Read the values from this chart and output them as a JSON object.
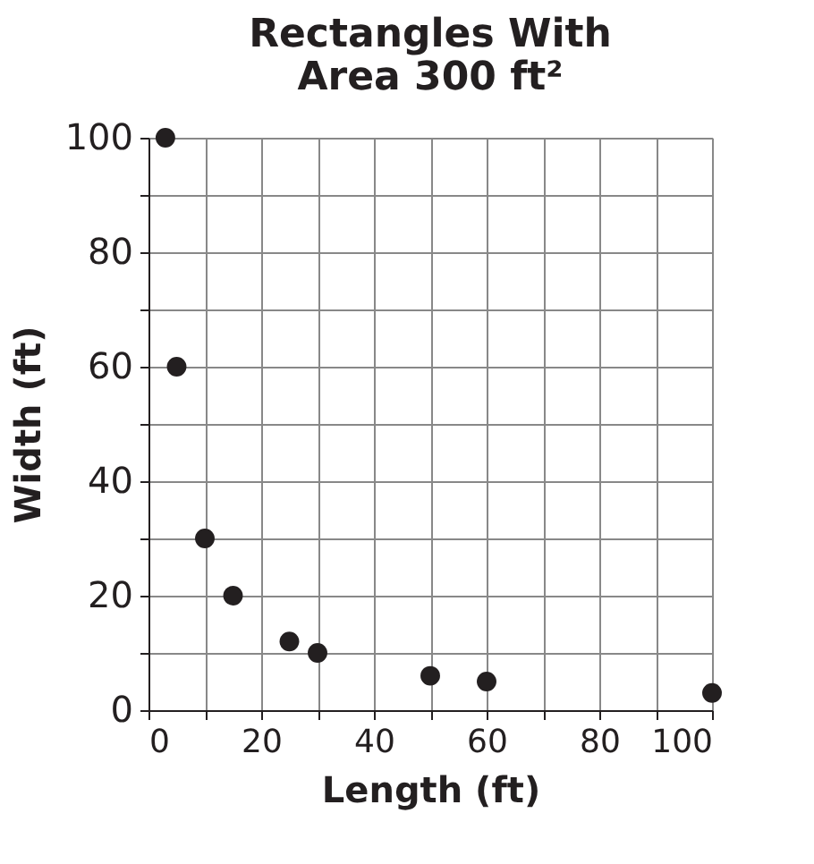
{
  "chart_data": {
    "type": "scatter",
    "title": "Rectangles With\nArea 300 ft²",
    "xlabel": "Length (ft)",
    "ylabel": "Width (ft)",
    "x": [
      3,
      5,
      10,
      15,
      25,
      30,
      50,
      60,
      100
    ],
    "series": [
      {
        "color": "#231f20",
        "values": [
          100,
          60,
          30,
          20,
          12,
          10,
          6,
          5,
          3
        ]
      }
    ],
    "xlim": [
      0,
      100
    ],
    "ylim": [
      0,
      100
    ],
    "xticks": [
      0,
      {
        "value": 10,
        "label": null
      },
      20,
      {
        "value": 30,
        "label": null
      },
      40,
      {
        "value": 50,
        "label": null
      },
      60,
      {
        "value": 70,
        "label": null
      },
      80,
      {
        "value": 90,
        "label": null
      },
      100
    ],
    "yticks": [
      0,
      {
        "value": 10,
        "label": null
      },
      20,
      {
        "value": 30,
        "label": null
      },
      40,
      {
        "value": 50,
        "label": null
      },
      60,
      {
        "value": 70,
        "label": null
      },
      80,
      {
        "value": 90,
        "label": null
      },
      100
    ],
    "grid": true,
    "marker": "circle"
  }
}
